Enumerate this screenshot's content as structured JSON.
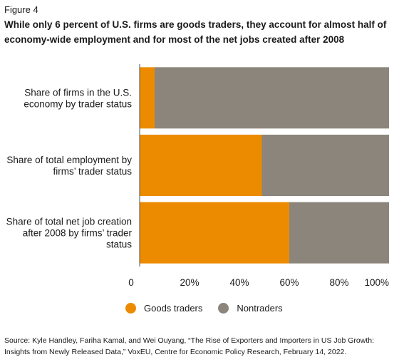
{
  "figure_label": "Figure 4",
  "title": "While only 6 percent of U.S. firms are goods traders, they account for almost half of economy-wide employment and for most of the net jobs created after 2008",
  "source": "Source: Kyle Handley, Fariha Kamal, and Wei Ouyang, “The Rise of Exporters and Importers in US Job Growth: Insights from Newly Released Data,” VoxEU, Centre for Economic Policy Research, February 14, 2022.",
  "colors": {
    "goods_traders": "#ec8b00",
    "nontraders": "#8c857c",
    "axis": "#555555"
  },
  "chart_data": {
    "type": "bar",
    "orientation": "horizontal",
    "stacked": true,
    "categories": [
      [
        "Share of firms in the U.S.",
        "economy by trader status"
      ],
      [
        "Share of total employment by",
        "firms’ trader status"
      ],
      [
        "Share of total net job creation",
        "after 2008 by firms’ trader",
        "status"
      ]
    ],
    "series": [
      {
        "name": "Goods traders",
        "color": "#ec8b00",
        "values": [
          6,
          49,
          60
        ]
      },
      {
        "name": "Nontraders",
        "color": "#8c857c",
        "values": [
          94,
          51,
          40
        ]
      }
    ],
    "xlim": [
      0,
      100
    ],
    "ticks": [
      0,
      20,
      40,
      60,
      80,
      100
    ],
    "tick_labels": [
      "0",
      "20%",
      "40%",
      "60%",
      "80%",
      "100%"
    ],
    "grid": false,
    "legend": "bottom"
  }
}
